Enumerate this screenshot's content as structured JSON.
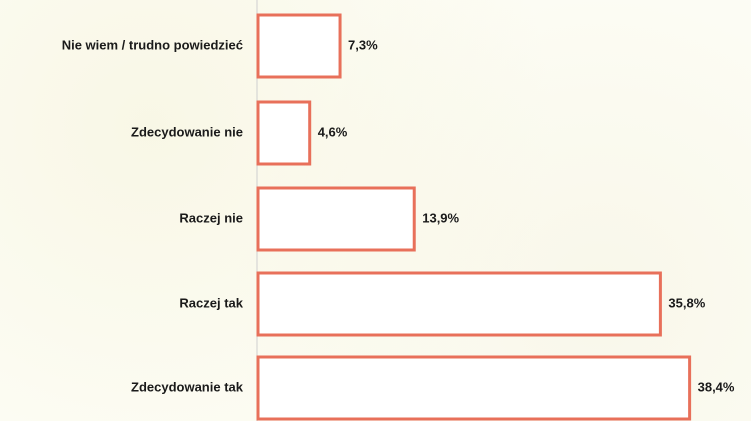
{
  "chart_data": {
    "type": "bar",
    "orientation": "horizontal",
    "categories": [
      "Nie wiem / trudno powiedzieć",
      "Zdecydowanie nie",
      "Raczej nie",
      "Raczej tak",
      "Zdecydowanie tak"
    ],
    "values": [
      7.3,
      4.6,
      13.9,
      35.8,
      38.4
    ],
    "value_labels": [
      "7,3%",
      "4,6%",
      "13,9%",
      "35,8%",
      "38,4%"
    ],
    "title": "",
    "xlabel": "",
    "ylabel": "",
    "xlim": [
      0,
      40
    ],
    "grid": false,
    "legend": "none",
    "colors": {
      "bar_stroke": "#e8705a",
      "bar_fill": "#ffffff",
      "text": "#1a1a1a",
      "background": "#fdfdf6"
    }
  }
}
